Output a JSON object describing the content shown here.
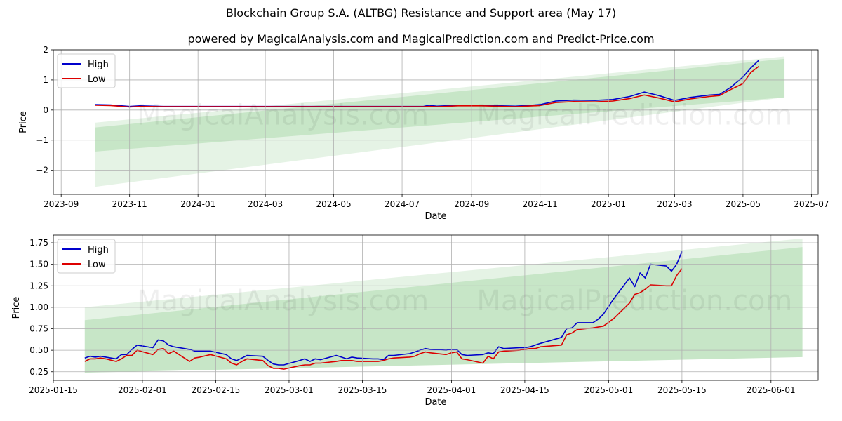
{
  "title": "Blockchain Group S.A. (ALTBG) Resistance and Support area (May 17)",
  "subtitle": "powered by MagicalAnalysis.com and MagicalPrediction.com and Predict-Price.com",
  "watermarks": [
    "MagicalAnalysis.com",
    "MagicalPrediction.com"
  ],
  "colors": {
    "high": "#0000cc",
    "low": "#dd0000",
    "band": "#2ca02c"
  },
  "chart_data": [
    {
      "type": "line",
      "xlabel": "Date",
      "ylabel": "Price",
      "grid": true,
      "legend": "top-left",
      "xlim": [
        "2023-08-25",
        "2025-07-07"
      ],
      "ylim": [
        -2.8,
        2.0
      ],
      "xticks": [
        "2023-09",
        "2023-11",
        "2024-01",
        "2024-03",
        "2024-05",
        "2024-07",
        "2024-09",
        "2024-11",
        "2025-01",
        "2025-03",
        "2025-05",
        "2025-07"
      ],
      "yticks": [
        2,
        1,
        0,
        -1,
        -2
      ],
      "band_outer": {
        "x": [
          "2023-10-01",
          "2025-06-07"
        ],
        "lower": [
          -2.55,
          0.42
        ],
        "upper": [
          -0.42,
          1.78
        ]
      },
      "band_inner": {
        "x": [
          "2023-10-01",
          "2025-06-07"
        ],
        "lower": [
          -1.38,
          0.42
        ],
        "upper": [
          -0.58,
          1.7
        ]
      },
      "series": [
        {
          "name": "High",
          "x": [
            "2023-10-01",
            "2023-10-15",
            "2023-11-01",
            "2023-11-10",
            "2023-12-01",
            "2024-02-01",
            "2024-05-01",
            "2024-07-20",
            "2024-07-25",
            "2024-08-01",
            "2024-08-20",
            "2024-09-10",
            "2024-10-10",
            "2024-11-01",
            "2024-11-15",
            "2024-12-01",
            "2024-12-20",
            "2025-01-05",
            "2025-01-20",
            "2025-02-02",
            "2025-02-15",
            "2025-03-01",
            "2025-03-15",
            "2025-04-01",
            "2025-04-10",
            "2025-04-20",
            "2025-05-01",
            "2025-05-08",
            "2025-05-15"
          ],
          "values": [
            0.18,
            0.17,
            0.12,
            0.14,
            0.12,
            0.12,
            0.12,
            0.12,
            0.16,
            0.13,
            0.16,
            0.16,
            0.13,
            0.18,
            0.3,
            0.33,
            0.32,
            0.35,
            0.45,
            0.6,
            0.48,
            0.32,
            0.42,
            0.5,
            0.52,
            0.75,
            1.1,
            1.4,
            1.65
          ]
        },
        {
          "name": "Low",
          "x": [
            "2023-10-01",
            "2023-10-15",
            "2023-11-01",
            "2023-11-10",
            "2023-12-01",
            "2024-02-01",
            "2024-05-01",
            "2024-07-20",
            "2024-07-25",
            "2024-08-01",
            "2024-08-20",
            "2024-09-10",
            "2024-10-10",
            "2024-11-01",
            "2024-11-15",
            "2024-12-01",
            "2024-12-20",
            "2025-01-05",
            "2025-01-20",
            "2025-02-02",
            "2025-02-15",
            "2025-03-01",
            "2025-03-15",
            "2025-04-01",
            "2025-04-10",
            "2025-04-20",
            "2025-05-01",
            "2025-05-08",
            "2025-05-15"
          ],
          "values": [
            0.16,
            0.15,
            0.1,
            0.12,
            0.11,
            0.11,
            0.11,
            0.11,
            0.12,
            0.11,
            0.14,
            0.14,
            0.11,
            0.15,
            0.25,
            0.28,
            0.27,
            0.3,
            0.38,
            0.5,
            0.4,
            0.27,
            0.37,
            0.45,
            0.48,
            0.68,
            0.88,
            1.25,
            1.45
          ]
        }
      ]
    },
    {
      "type": "line",
      "xlabel": "Date",
      "ylabel": "Price",
      "grid": true,
      "legend": "top-left",
      "xlim": [
        "2025-01-15",
        "2025-06-10"
      ],
      "ylim": [
        0.15,
        1.84
      ],
      "xticks": [
        "2025-01-15",
        "2025-02-01",
        "2025-02-15",
        "2025-03-01",
        "2025-03-15",
        "2025-04-01",
        "2025-04-15",
        "2025-05-01",
        "2025-05-15",
        "2025-06-01"
      ],
      "yticks": [
        1.75,
        1.5,
        1.25,
        1.0,
        0.75,
        0.5,
        0.25
      ],
      "band_outer": {
        "x": [
          "2025-01-21",
          "2025-06-07"
        ],
        "lower": [
          0.24,
          0.42
        ],
        "upper": [
          1.0,
          1.8
        ]
      },
      "band_inner": {
        "x": [
          "2025-01-21",
          "2025-06-07"
        ],
        "lower": [
          0.24,
          0.42
        ],
        "upper": [
          0.85,
          1.7
        ]
      },
      "series": [
        {
          "name": "High",
          "x": [
            "2025-01-21",
            "2025-01-22",
            "2025-01-23",
            "2025-01-24",
            "2025-01-25",
            "2025-01-27",
            "2025-01-28",
            "2025-01-29",
            "2025-01-30",
            "2025-01-31",
            "2025-02-03",
            "2025-02-04",
            "2025-02-05",
            "2025-02-06",
            "2025-02-07",
            "2025-02-10",
            "2025-02-11",
            "2025-02-12",
            "2025-02-14",
            "2025-02-17",
            "2025-02-18",
            "2025-02-19",
            "2025-02-20",
            "2025-02-21",
            "2025-02-24",
            "2025-02-25",
            "2025-02-26",
            "2025-02-27",
            "2025-02-28",
            "2025-03-03",
            "2025-03-04",
            "2025-03-05",
            "2025-03-06",
            "2025-03-07",
            "2025-03-10",
            "2025-03-11",
            "2025-03-12",
            "2025-03-13",
            "2025-03-14",
            "2025-03-17",
            "2025-03-18",
            "2025-03-19",
            "2025-03-20",
            "2025-03-21",
            "2025-03-24",
            "2025-03-25",
            "2025-03-26",
            "2025-03-27",
            "2025-03-28",
            "2025-03-31",
            "2025-04-01",
            "2025-04-02",
            "2025-04-03",
            "2025-04-04",
            "2025-04-07",
            "2025-04-08",
            "2025-04-09",
            "2025-04-10",
            "2025-04-11",
            "2025-04-14",
            "2025-04-15",
            "2025-04-16",
            "2025-04-17",
            "2025-04-18",
            "2025-04-22",
            "2025-04-23",
            "2025-04-24",
            "2025-04-25",
            "2025-04-28",
            "2025-04-29",
            "2025-04-30",
            "2025-05-02",
            "2025-05-05",
            "2025-05-06",
            "2025-05-07",
            "2025-05-08",
            "2025-05-09",
            "2025-05-12",
            "2025-05-13",
            "2025-05-14",
            "2025-05-15"
          ],
          "values": [
            0.41,
            0.43,
            0.42,
            0.43,
            0.42,
            0.4,
            0.45,
            0.45,
            0.51,
            0.56,
            0.53,
            0.62,
            0.61,
            0.56,
            0.54,
            0.51,
            0.49,
            0.49,
            0.49,
            0.45,
            0.4,
            0.38,
            0.41,
            0.44,
            0.43,
            0.38,
            0.34,
            0.33,
            0.33,
            0.38,
            0.4,
            0.37,
            0.4,
            0.39,
            0.44,
            0.42,
            0.4,
            0.42,
            0.41,
            0.4,
            0.4,
            0.39,
            0.44,
            0.44,
            0.46,
            0.48,
            0.5,
            0.52,
            0.51,
            0.5,
            0.51,
            0.51,
            0.45,
            0.44,
            0.45,
            0.47,
            0.46,
            0.54,
            0.52,
            0.53,
            0.53,
            0.54,
            0.56,
            0.58,
            0.65,
            0.75,
            0.76,
            0.82,
            0.82,
            0.86,
            0.92,
            1.1,
            1.34,
            1.24,
            1.4,
            1.34,
            1.5,
            1.48,
            1.42,
            1.5,
            1.65
          ]
        },
        {
          "name": "Low",
          "x": [
            "2025-01-21",
            "2025-01-22",
            "2025-01-23",
            "2025-01-24",
            "2025-01-25",
            "2025-01-27",
            "2025-01-28",
            "2025-01-29",
            "2025-01-30",
            "2025-01-31",
            "2025-02-03",
            "2025-02-04",
            "2025-02-05",
            "2025-02-06",
            "2025-02-07",
            "2025-02-10",
            "2025-02-11",
            "2025-02-12",
            "2025-02-14",
            "2025-02-17",
            "2025-02-18",
            "2025-02-19",
            "2025-02-20",
            "2025-02-21",
            "2025-02-24",
            "2025-02-25",
            "2025-02-26",
            "2025-02-27",
            "2025-02-28",
            "2025-03-03",
            "2025-03-04",
            "2025-03-05",
            "2025-03-06",
            "2025-03-07",
            "2025-03-10",
            "2025-03-11",
            "2025-03-12",
            "2025-03-13",
            "2025-03-14",
            "2025-03-17",
            "2025-03-18",
            "2025-03-19",
            "2025-03-20",
            "2025-03-21",
            "2025-03-24",
            "2025-03-25",
            "2025-03-26",
            "2025-03-27",
            "2025-03-28",
            "2025-03-31",
            "2025-04-01",
            "2025-04-02",
            "2025-04-03",
            "2025-04-04",
            "2025-04-07",
            "2025-04-08",
            "2025-04-09",
            "2025-04-10",
            "2025-04-11",
            "2025-04-14",
            "2025-04-15",
            "2025-04-16",
            "2025-04-17",
            "2025-04-18",
            "2025-04-22",
            "2025-04-23",
            "2025-04-24",
            "2025-04-25",
            "2025-04-28",
            "2025-04-29",
            "2025-04-30",
            "2025-05-02",
            "2025-05-05",
            "2025-05-06",
            "2025-05-07",
            "2025-05-08",
            "2025-05-09",
            "2025-05-12",
            "2025-05-13",
            "2025-05-14",
            "2025-05-15"
          ],
          "values": [
            0.37,
            0.4,
            0.4,
            0.41,
            0.4,
            0.37,
            0.4,
            0.44,
            0.44,
            0.5,
            0.45,
            0.51,
            0.52,
            0.46,
            0.49,
            0.37,
            0.41,
            0.42,
            0.45,
            0.4,
            0.35,
            0.33,
            0.37,
            0.4,
            0.38,
            0.32,
            0.29,
            0.29,
            0.28,
            0.32,
            0.33,
            0.33,
            0.35,
            0.35,
            0.37,
            0.38,
            0.38,
            0.38,
            0.37,
            0.37,
            0.37,
            0.38,
            0.4,
            0.41,
            0.42,
            0.43,
            0.46,
            0.48,
            0.47,
            0.45,
            0.47,
            0.48,
            0.4,
            0.39,
            0.35,
            0.43,
            0.4,
            0.48,
            0.49,
            0.5,
            0.51,
            0.52,
            0.52,
            0.54,
            0.56,
            0.68,
            0.7,
            0.74,
            0.76,
            0.77,
            0.78,
            0.87,
            1.05,
            1.15,
            1.17,
            1.21,
            1.26,
            1.25,
            1.25,
            1.37,
            1.45
          ]
        }
      ]
    }
  ]
}
